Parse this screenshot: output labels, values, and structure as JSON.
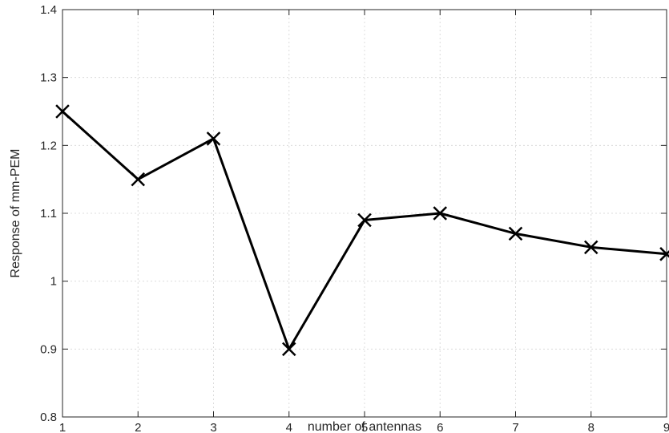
{
  "chart_data": {
    "type": "line",
    "title": "",
    "xlabel": "number of antennas",
    "ylabel": "Response of mm-PEM",
    "x": [
      1,
      2,
      3,
      4,
      5,
      6,
      7,
      8,
      9
    ],
    "series": [
      {
        "values": [
          1.25,
          1.15,
          1.21,
          0.9,
          1.09,
          1.1,
          1.07,
          1.05,
          1.04
        ],
        "color": "#000000",
        "marker": "x"
      }
    ],
    "xlim": [
      1,
      9
    ],
    "ylim": [
      0.8,
      1.4
    ],
    "xticks": [
      "1",
      "2",
      "3",
      "4",
      "5",
      "6",
      "7",
      "8",
      "9"
    ],
    "yticks": [
      "0.8",
      "0.9",
      "1",
      "1.1",
      "1.2",
      "1.3",
      "1.4"
    ],
    "grid": true,
    "legend": "none"
  }
}
